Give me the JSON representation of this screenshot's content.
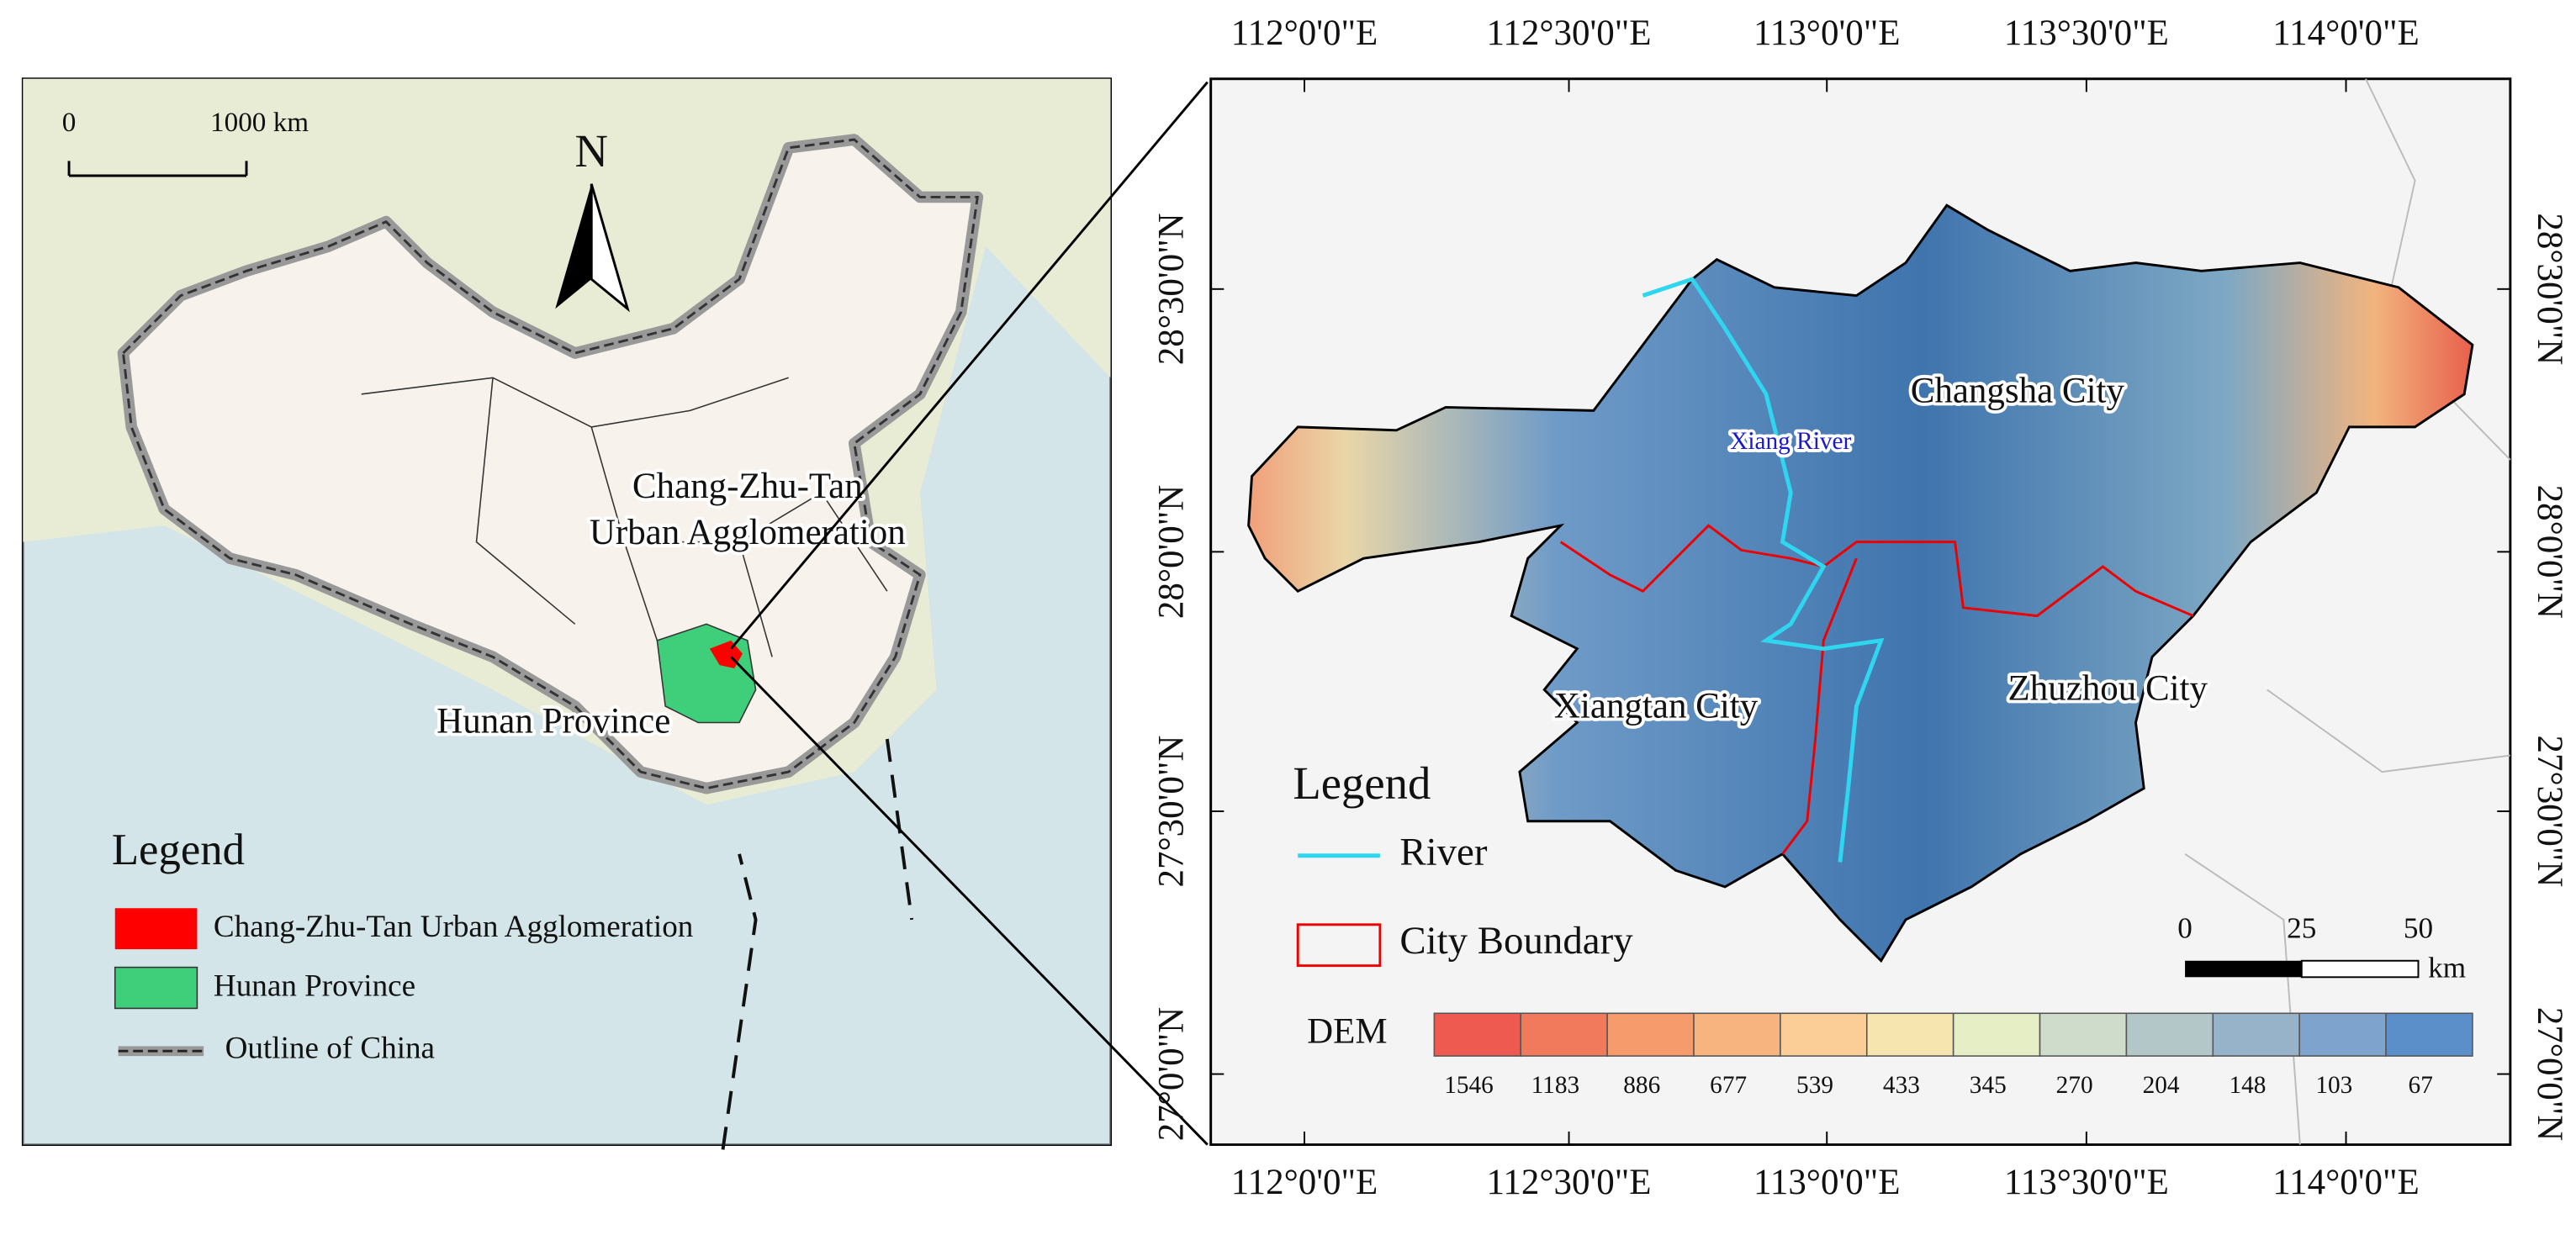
{
  "left_map": {
    "scale_bar": {
      "start": "0",
      "end": "1000 km"
    },
    "north": "N",
    "labels": {
      "czt": [
        "Chang-Zhu-Tan",
        "Urban Agglomeration"
      ],
      "hunan": "Hunan Province"
    },
    "legend": {
      "title": "Legend",
      "items": [
        "Chang-Zhu-Tan Urban Agglomeration",
        "Hunan Province",
        "Outline of China"
      ]
    }
  },
  "right_map": {
    "longitudes": [
      "112°0'0\"E",
      "112°30'0\"E",
      "113°0'0\"E",
      "113°30'0\"E",
      "114°0'0\"E"
    ],
    "latitudes": [
      "28°30'0\"N",
      "28°0'0\"N",
      "27°30'0\"N",
      "27°0'0\"N"
    ],
    "cities": [
      "Changsha City",
      "Xiangtan City",
      "Zhuzhou City"
    ],
    "river_label": "Xiang River",
    "legend": {
      "title": "Legend",
      "items": [
        "River",
        "City Boundary"
      ]
    },
    "scale_bar": {
      "ticks": [
        "0",
        "25",
        "50"
      ],
      "unit": "km"
    },
    "dem": {
      "title": "DEM",
      "classes": [
        {
          "label": 1546,
          "color": "#ef5a50"
        },
        {
          "label": 1183,
          "color": "#f27a5c"
        },
        {
          "label": 886,
          "color": "#f59b6c"
        },
        {
          "label": 677,
          "color": "#f8b47e"
        },
        {
          "label": 539,
          "color": "#fbcd97"
        },
        {
          "label": 433,
          "color": "#f6e5ae"
        },
        {
          "label": 345,
          "color": "#e6eec6"
        },
        {
          "label": 270,
          "color": "#cfdccc"
        },
        {
          "label": 204,
          "color": "#b3c7c8"
        },
        {
          "label": 148,
          "color": "#97b3c9"
        },
        {
          "label": 103,
          "color": "#7ea3cc"
        },
        {
          "label": 67,
          "color": "#5b8fc9"
        }
      ]
    }
  }
}
